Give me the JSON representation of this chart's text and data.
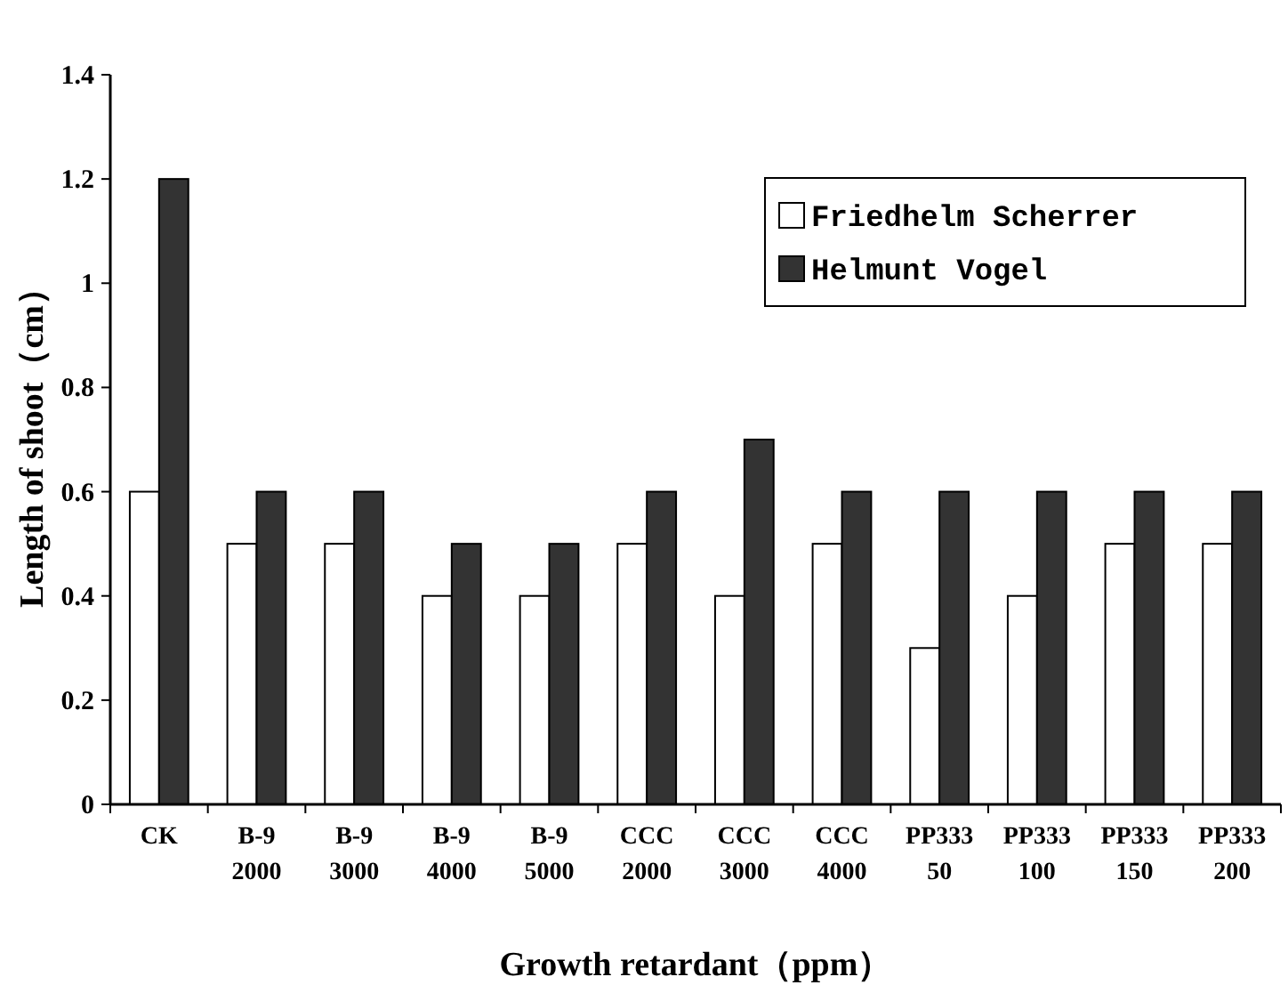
{
  "chart_data": {
    "type": "bar",
    "xlabel": "Growth retardant（ppm）",
    "ylabel": "Length of shoot（cm）",
    "categories": [
      "CK",
      "B-9 2000",
      "B-9 3000",
      "B-9 4000",
      "B-9 5000",
      "CCC 2000",
      "CCC 3000",
      "CCC 4000",
      "PP333 50",
      "PP333 100",
      "PP333 150",
      "PP333 200"
    ],
    "series": [
      {
        "name": "Friedhelm Scherrer",
        "color": "#ffffff",
        "values": [
          0.6,
          0.5,
          0.5,
          0.4,
          0.4,
          0.5,
          0.4,
          0.5,
          0.3,
          0.4,
          0.5,
          0.5
        ]
      },
      {
        "name": "Helmunt Vogel",
        "color": "#333333",
        "values": [
          1.2,
          0.6,
          0.6,
          0.5,
          0.5,
          0.6,
          0.7,
          0.6,
          0.6,
          0.6,
          0.6,
          0.6
        ]
      }
    ],
    "ylim": [
      0,
      1.4
    ],
    "yticks": [
      0,
      0.2,
      0.4,
      0.6,
      0.8,
      1,
      1.2,
      1.4
    ],
    "legend": "top right",
    "grid": false
  }
}
